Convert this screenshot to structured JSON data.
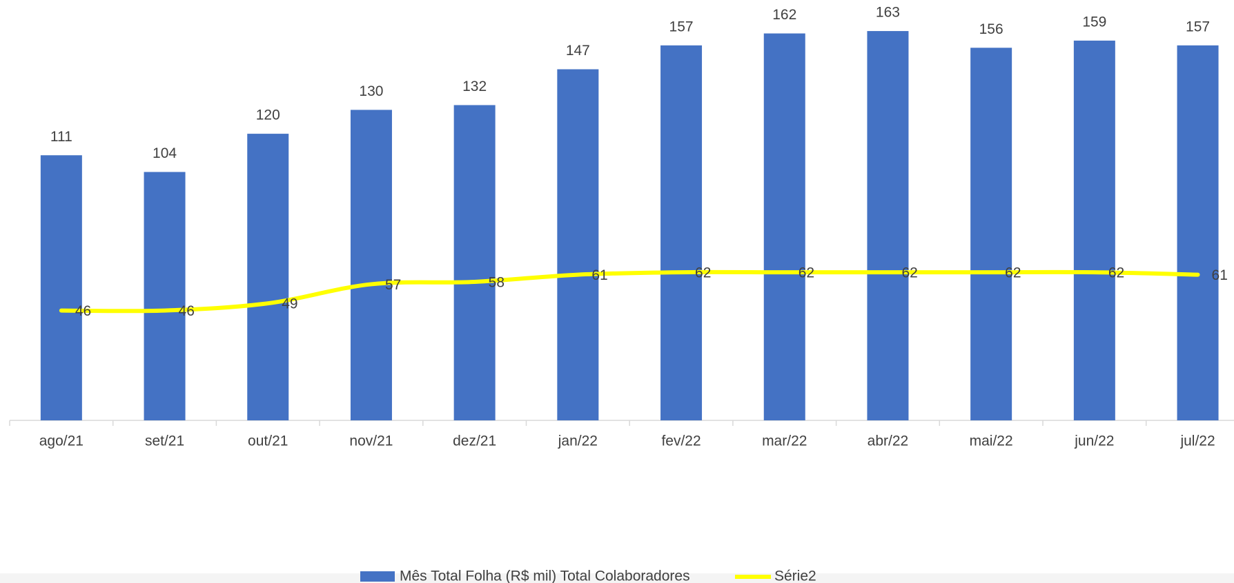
{
  "chart_data": {
    "type": "bar_line",
    "categories": [
      "ago/21",
      "set/21",
      "out/21",
      "nov/21",
      "dez/21",
      "jan/22",
      "fev/22",
      "mar/22",
      "abr/22",
      "mai/22",
      "jun/22",
      "jul/22"
    ],
    "series": [
      {
        "name": "Mês Total Folha (R$ mil) Total Colaboradores",
        "type": "bar",
        "color": "#4472c4",
        "values": [
          111,
          104,
          120,
          130,
          132,
          147,
          157,
          162,
          163,
          156,
          159,
          157
        ]
      },
      {
        "name": "Série2",
        "type": "line",
        "color": "#ffff00",
        "values": [
          46,
          46,
          49,
          57,
          58,
          61,
          62,
          62,
          62,
          62,
          62,
          61
        ]
      }
    ],
    "ylim": [
      0,
      176
    ],
    "legend": "bottom"
  }
}
